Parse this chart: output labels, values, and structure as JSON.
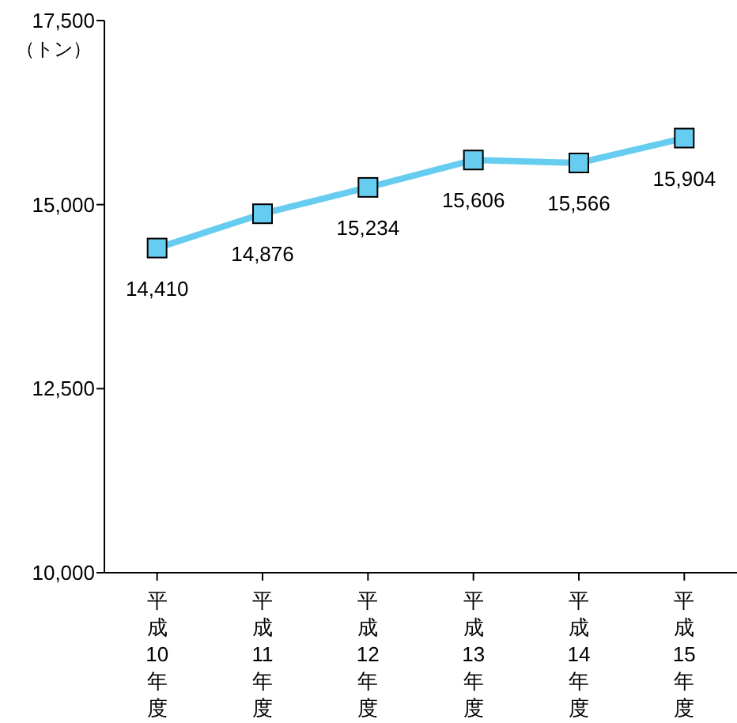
{
  "chart_data": {
    "type": "line",
    "ylabel": "（トン）",
    "categories": [
      "平成10年度",
      "平成11年度",
      "平成12年度",
      "平成13年度",
      "平成14年度",
      "平成15年度"
    ],
    "series": [
      {
        "color": "#66ccf0",
        "values": [
          14410,
          14876,
          15234,
          15606,
          15566,
          15904
        ],
        "value_labels": [
          "14,410",
          "14,876",
          "15,234",
          "15,606",
          "15,566",
          "15,904"
        ]
      }
    ],
    "ylim": [
      10000,
      17500
    ],
    "yticks": [
      {
        "value": 10000,
        "label": "10,000"
      },
      {
        "value": 12500,
        "label": "12,500"
      },
      {
        "value": 15000,
        "label": "15,000"
      },
      {
        "value": 17500,
        "label": "17,500"
      }
    ],
    "marker": "square"
  }
}
